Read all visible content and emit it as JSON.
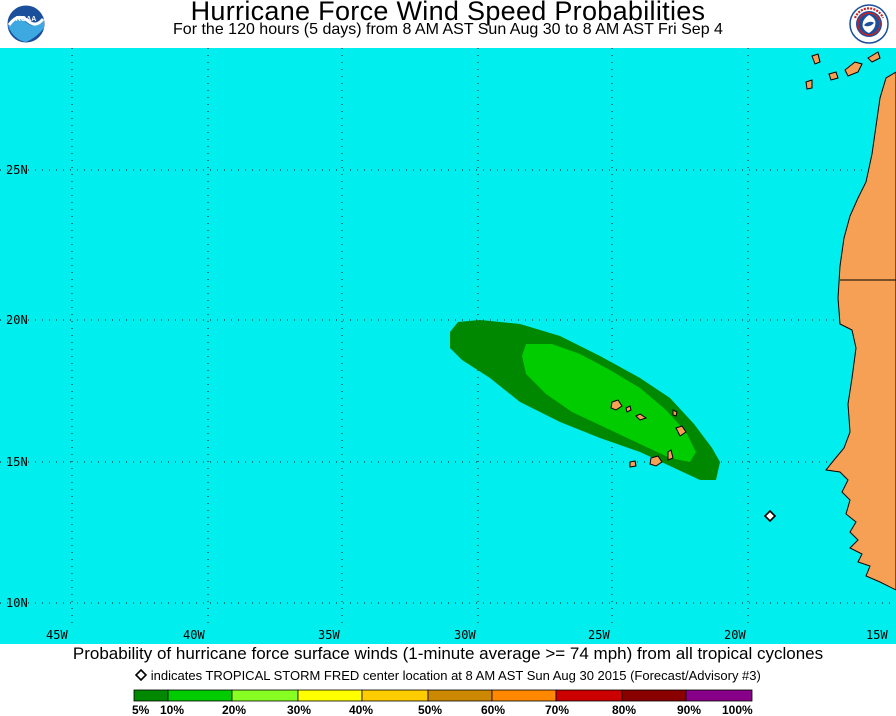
{
  "title": "Hurricane Force Wind Speed Probabilities",
  "subtitle": "For the 120 hours (5 days) from 8 AM AST Sun Aug 30 to 8 AM AST Fri Sep 4",
  "logos": {
    "left": {
      "icon": "noaa-logo",
      "text": "NOAA"
    },
    "right": {
      "icon": "national-weather-service-logo"
    }
  },
  "map": {
    "ocean_color": "#00eeee",
    "land_color": "#f5a055",
    "lat_labels": [
      "25N",
      "20N",
      "15N",
      "10N"
    ],
    "lon_labels": [
      "45W",
      "40W",
      "35W",
      "30W",
      "25W",
      "20W",
      "15W"
    ]
  },
  "probability_area": {
    "outer_band": {
      "range": "5%-10%",
      "color": "#008800"
    },
    "inner_band": {
      "range": "10%-20%",
      "color": "#00cc00"
    }
  },
  "footer": {
    "description": "Probability of hurricane force surface winds (1-minute average >= 74 mph) from all tropical cyclones",
    "storm_note": "indicates TROPICAL STORM FRED center location at 8 AM AST Sun Aug 30 2015 (Forecast/Advisory #3)",
    "storm_marker_icon": "diamond-icon"
  },
  "legend": {
    "swatches": [
      {
        "color": "#008800"
      },
      {
        "color": "#00cc00"
      },
      {
        "color": "#88ff22"
      },
      {
        "color": "#ffff00"
      },
      {
        "color": "#ffcc00"
      },
      {
        "color": "#cc8800"
      },
      {
        "color": "#ff8800"
      },
      {
        "color": "#cc0000"
      },
      {
        "color": "#880000"
      },
      {
        "color": "#880088"
      }
    ],
    "labels": [
      "5%",
      "10%",
      "20%",
      "30%",
      "40%",
      "50%",
      "60%",
      "70%",
      "80%",
      "90%",
      "100%"
    ]
  }
}
